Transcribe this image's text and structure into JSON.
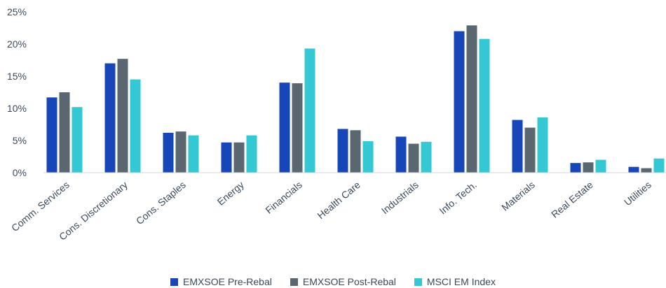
{
  "chart_data": {
    "type": "bar",
    "categories": [
      "Comm. Services",
      "Cons. Discretionary",
      "Cons. Staples",
      "Energy",
      "Financials",
      "Health Care",
      "Industrials",
      "Info. Tech.",
      "Materials",
      "Real Estate",
      "Utilities"
    ],
    "series": [
      {
        "name": "EMXSOE Pre-Rebal",
        "color": "#1746b8",
        "values": [
          11.7,
          17.0,
          6.2,
          4.7,
          14.0,
          6.8,
          5.6,
          22.0,
          8.2,
          1.5,
          0.9
        ]
      },
      {
        "name": "EMXSOE Post-Rebal",
        "color": "#5b6770",
        "values": [
          12.5,
          17.7,
          6.4,
          4.7,
          13.9,
          6.6,
          4.5,
          22.9,
          7.0,
          1.6,
          0.7
        ]
      },
      {
        "name": "MSCI EM Index",
        "color": "#33c8d4",
        "values": [
          10.2,
          14.5,
          5.8,
          5.8,
          19.3,
          4.9,
          4.8,
          20.8,
          8.6,
          2.0,
          2.2
        ]
      }
    ],
    "yticks": [
      "0%",
      "5%",
      "10%",
      "15%",
      "20%",
      "25%"
    ],
    "ylim": [
      0,
      25
    ],
    "grid": false,
    "legend_position": "bottom-center",
    "title": "",
    "xlabel": "",
    "ylabel": ""
  }
}
